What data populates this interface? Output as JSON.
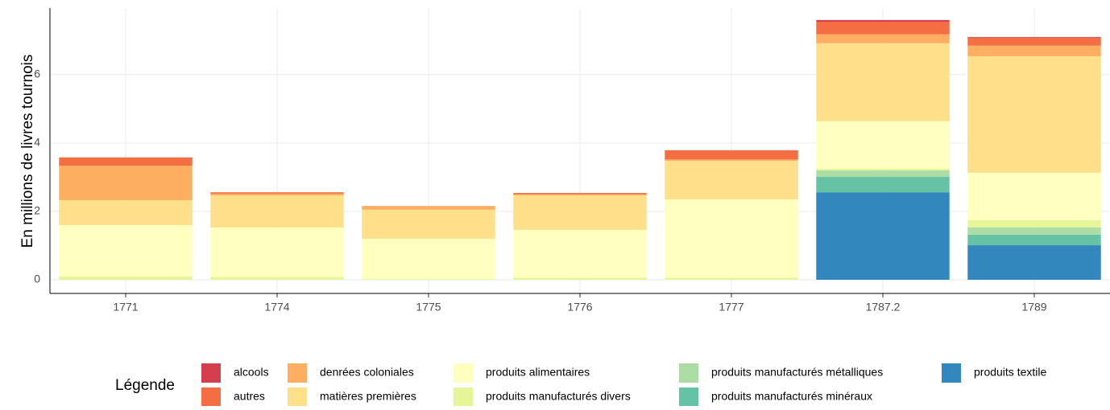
{
  "chart_data": {
    "type": "stacked_bar",
    "y_label": "En millions de livres tournois",
    "legend_title": "Légende",
    "categories": [
      "1771",
      "1774",
      "1775",
      "1776",
      "1777",
      "1787.2",
      "1789"
    ],
    "series": [
      {
        "name": "alcools",
        "color": "#d53e4f",
        "values": [
          0,
          0,
          0,
          0,
          0,
          0.05,
          0.02
        ]
      },
      {
        "name": "autres",
        "color": "#f46d43",
        "values": [
          0.24,
          0.04,
          0,
          0.04,
          0.27,
          0.37,
          0.23
        ]
      },
      {
        "name": "denrées coloniales",
        "color": "#fdae61",
        "values": [
          1.01,
          0.05,
          0.11,
          0.03,
          0.04,
          0.26,
          0.31
        ]
      },
      {
        "name": "matières premières",
        "color": "#fee08b",
        "values": [
          0.73,
          0.94,
          0.85,
          1.01,
          1.13,
          2.28,
          3.41
        ]
      },
      {
        "name": "produits alimentaires",
        "color": "#ffffbf",
        "values": [
          1.5,
          1.45,
          1.18,
          1.4,
          2.29,
          1.39,
          1.39
        ]
      },
      {
        "name": "produits manufacturés divers",
        "color": "#e6f598",
        "values": [
          0.1,
          0.08,
          0.02,
          0.06,
          0.06,
          0.05,
          0.21
        ]
      },
      {
        "name": "produits manufacturés métalliques",
        "color": "#abdda4",
        "values": [
          0,
          0,
          0,
          0,
          0,
          0.19,
          0.21
        ]
      },
      {
        "name": "produits manufacturés minéraux",
        "color": "#66c2a5",
        "values": [
          0,
          0,
          0,
          0,
          0,
          0.45,
          0.31
        ]
      },
      {
        "name": "produits textile",
        "color": "#3288bd",
        "values": [
          0,
          0,
          0,
          0,
          0,
          2.56,
          1.01
        ]
      }
    ],
    "ylim": [
      -0.4,
      7.95
    ],
    "yticks": [
      0,
      2,
      4,
      6
    ],
    "grid": true
  }
}
